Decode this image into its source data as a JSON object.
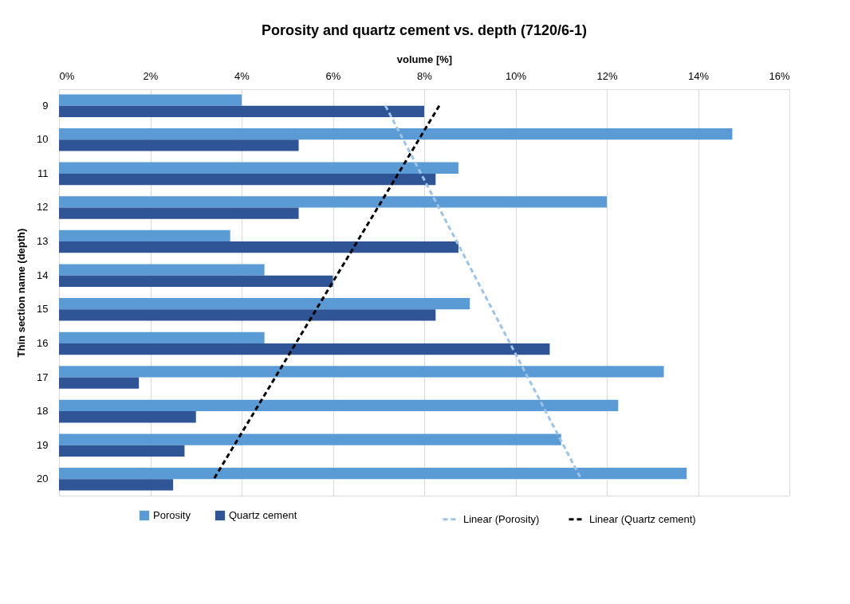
{
  "chart_data": {
    "type": "bar",
    "orientation": "horizontal",
    "title": "Porosity and quartz cement vs. depth (7120/6-1)",
    "xlabel": "volume [%]",
    "ylabel": "Thin section name (depth)",
    "categories": [
      "9",
      "10",
      "11",
      "12",
      "13",
      "14",
      "15",
      "16",
      "17",
      "18",
      "19",
      "20"
    ],
    "series": [
      {
        "name": "Porosity",
        "color": "#5b9bd5",
        "values": [
          4.0,
          14.75,
          8.75,
          12.0,
          3.75,
          4.5,
          9.0,
          4.5,
          13.25,
          12.25,
          11.0,
          13.75
        ]
      },
      {
        "name": "Quartz cement",
        "color": "#2f5597",
        "values": [
          8.0,
          5.25,
          8.25,
          5.25,
          8.75,
          6.0,
          8.25,
          10.75,
          1.75,
          3.0,
          2.75,
          2.5
        ]
      },
      {
        "name": "Linear (Porosity)",
        "type": "line",
        "line_style": "dashed",
        "color": "#9dc3e6",
        "values": [
          7.15,
          null,
          null,
          null,
          null,
          null,
          null,
          null,
          null,
          null,
          null,
          11.44
        ]
      },
      {
        "name": "Linear (Quartz cement)",
        "type": "line",
        "line_style": "dashed",
        "color": "#000000",
        "values": [
          8.33,
          null,
          null,
          null,
          null,
          null,
          null,
          null,
          null,
          null,
          null,
          3.39
        ]
      }
    ],
    "xlim": [
      0,
      16
    ],
    "xticks": [
      {
        "value": 0,
        "label": "0%"
      },
      {
        "value": 2,
        "label": "2%"
      },
      {
        "value": 4,
        "label": "4%"
      },
      {
        "value": 6,
        "label": "6%"
      },
      {
        "value": 8,
        "label": "8%"
      },
      {
        "value": 10,
        "label": "10%"
      },
      {
        "value": 12,
        "label": "12%"
      },
      {
        "value": 14,
        "label": "14%"
      },
      {
        "value": 16,
        "label": "16%"
      }
    ],
    "grid": "x",
    "legend": "bottom"
  }
}
